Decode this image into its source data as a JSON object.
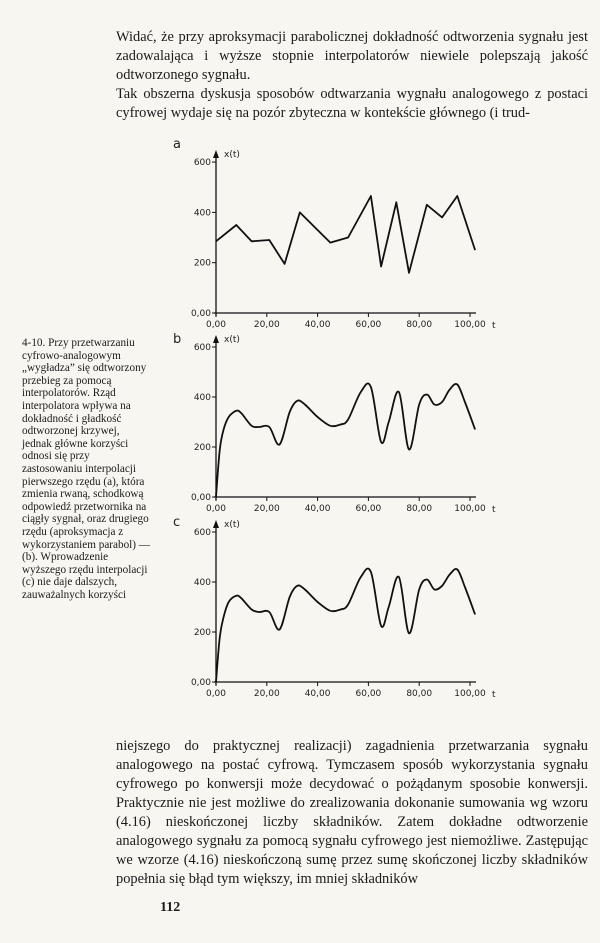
{
  "text": {
    "top_paragraph_1": "Widać, że przy aproksymacji parabolicznej dokładność odtworzenia sygnału jest zadowalająca i wyższe stopnie interpolatorów niewiele polepszają jakość odtworzonego sygnału.",
    "top_paragraph_2": "Tak obszerna dyskusja sposobów odtwarzania wygnału analogowego z postaci cyfrowej wydaje się na pozór zbyteczna w kontekście głównego (i trud-",
    "bottom_paragraph": "niejszego do praktycznej realizacji) zagadnienia przetwarzania sygnału analogowego na postać cyfrową. Tymczasem sposób wykorzystania sygnału cyfrowego po konwersji może decydować o pożądanym sposobie konwersji. Praktycznie nie jest możliwe do zrealizowania dokonanie sumowania wg wzoru (4.16) nieskończonej liczby składników. Zatem dokładne odtworzenie analogowego sygnału za pomocą sygnału cyfrowego jest niemożliwe. Zastępując we wzorze (4.16) nieskończoną sumę przez sumę skończonej liczby składników popełnia się błąd tym większy, im mniej składników",
    "caption": "4-10. Przy przetwarzaniu cyfrowo-analogowym „wygładza” się odtworzony przebieg za pomocą interpolatorów. Rząd interpolatora wpływa na dokładność i gładkość odtworzonej krzywej, jednak główne korzyści odnosi się przy zastosowaniu interpolacji pierwszego rzędu (a), która zmienia rwaną, schodkową odpowiedź przetwornika na ciągły sygnał, oraz drugiego rzędu (aproksymacja z wykorzystaniem parabol) — (b). Wprowadzenie wyższego rzędu interpolacji (c) nie daje dalszych, zauważalnych korzyści",
    "page_number": "112"
  },
  "chart_data": [
    {
      "panel": "a",
      "type": "line",
      "interpolation": "linear",
      "ylabel": "x(t)",
      "xlabel": "t",
      "x_ticks": [
        "0,00",
        "20,00",
        "40,00",
        "60,00",
        "80,00",
        "100,00"
      ],
      "y_ticks": [
        "0,00",
        "200",
        "400",
        "600"
      ],
      "xlim": [
        0,
        100
      ],
      "ylim": [
        0,
        640
      ],
      "x": [
        0,
        8,
        14,
        21,
        27,
        33,
        45,
        52,
        61,
        65,
        71,
        76,
        83,
        89,
        95,
        102
      ],
      "y": [
        285,
        350,
        285,
        290,
        195,
        400,
        280,
        300,
        465,
        185,
        440,
        160,
        430,
        380,
        465,
        250
      ]
    },
    {
      "panel": "b",
      "type": "line",
      "interpolation": "smooth",
      "ylabel": "x(t)",
      "xlabel": "t",
      "x_ticks": [
        "0,00",
        "20,00",
        "40,00",
        "60,00",
        "80,00",
        "100,00"
      ],
      "y_ticks": [
        "0,00",
        "200",
        "400",
        "600"
      ],
      "xlim": [
        0,
        100
      ],
      "ylim": [
        0,
        640
      ],
      "x": [
        0,
        1.5,
        3,
        5,
        8,
        10,
        14,
        17,
        21,
        25,
        29,
        32,
        35,
        40,
        45,
        49,
        52,
        57,
        61,
        65,
        68,
        72,
        76,
        80,
        83,
        86,
        89,
        92,
        95,
        98,
        102
      ],
      "y": [
        0,
        190,
        270,
        320,
        345,
        335,
        285,
        280,
        280,
        210,
        340,
        385,
        370,
        320,
        285,
        290,
        310,
        420,
        440,
        220,
        300,
        420,
        190,
        370,
        410,
        370,
        380,
        430,
        450,
        380,
        270
      ]
    },
    {
      "panel": "c",
      "type": "line",
      "interpolation": "smooth",
      "ylabel": "x(t)",
      "xlabel": "t",
      "x_ticks": [
        "0,00",
        "20,00",
        "40,00",
        "60,00",
        "80,00",
        "100,00"
      ],
      "y_ticks": [
        "0,00",
        "200",
        "400",
        "600"
      ],
      "xlim": [
        0,
        100
      ],
      "ylim": [
        0,
        640
      ],
      "x": [
        0,
        1.5,
        3,
        5,
        8,
        10,
        14,
        17,
        21,
        25,
        29,
        32,
        35,
        40,
        45,
        49,
        52,
        57,
        61,
        65,
        68,
        72,
        76,
        80,
        83,
        86,
        89,
        92,
        95,
        98,
        102
      ],
      "y": [
        0,
        180,
        260,
        320,
        345,
        335,
        290,
        280,
        280,
        210,
        340,
        385,
        370,
        320,
        285,
        290,
        310,
        420,
        440,
        225,
        300,
        420,
        195,
        370,
        410,
        370,
        385,
        430,
        450,
        380,
        270
      ]
    }
  ]
}
